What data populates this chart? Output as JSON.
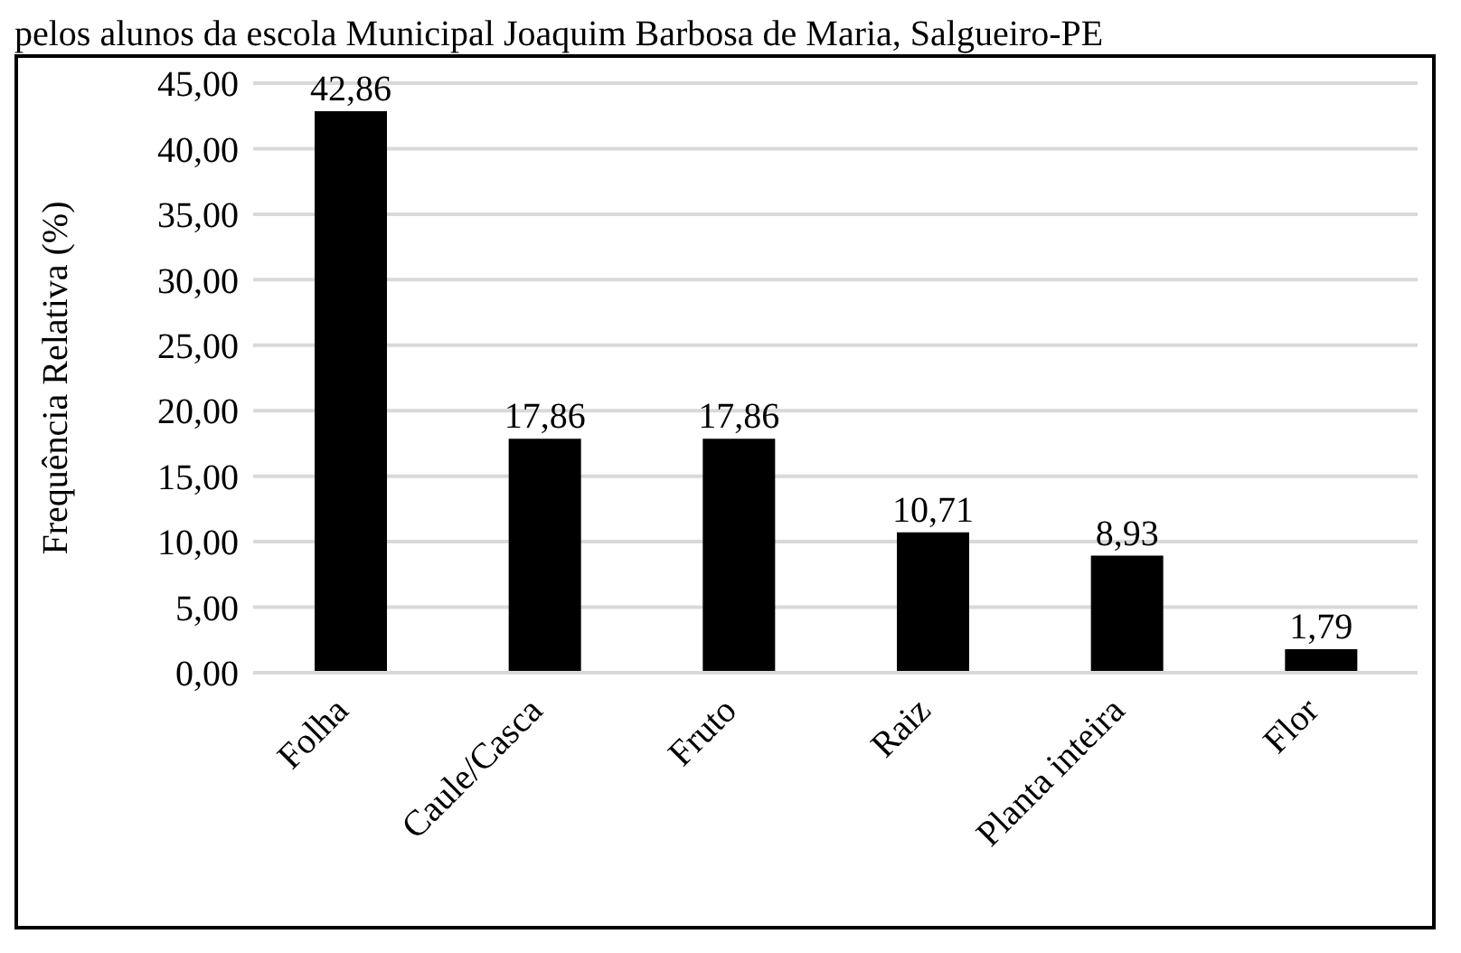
{
  "chart_data": {
    "type": "bar",
    "title": "pelos alunos da escola Municipal Joaquim Barbosa de Maria, Salgueiro-PE",
    "ylabel": "Frequência Relativa (%)",
    "categories": [
      "Folha",
      "Caule/Casca",
      "Fruto",
      "Raiz",
      "Planta inteira",
      "Flor"
    ],
    "values": [
      42.86,
      17.86,
      17.86,
      10.71,
      8.93,
      1.79
    ],
    "value_labels": [
      "42,86",
      "17,86",
      "17,86",
      "10,71",
      "8,93",
      "1,79"
    ],
    "color": "#000000",
    "ylim": [
      0,
      45
    ],
    "yticks": [
      {
        "value": 0,
        "label": "0,00"
      },
      {
        "value": 5,
        "label": "5,00"
      },
      {
        "value": 10,
        "label": "10,00"
      },
      {
        "value": 15,
        "label": "15,00"
      },
      {
        "value": 20,
        "label": "20,00"
      },
      {
        "value": 25,
        "label": "25,00"
      },
      {
        "value": 30,
        "label": "30,00"
      },
      {
        "value": 35,
        "label": "35,00"
      },
      {
        "value": 40,
        "label": "40,00"
      },
      {
        "value": 45,
        "label": "45,00"
      }
    ],
    "grid": "y"
  }
}
